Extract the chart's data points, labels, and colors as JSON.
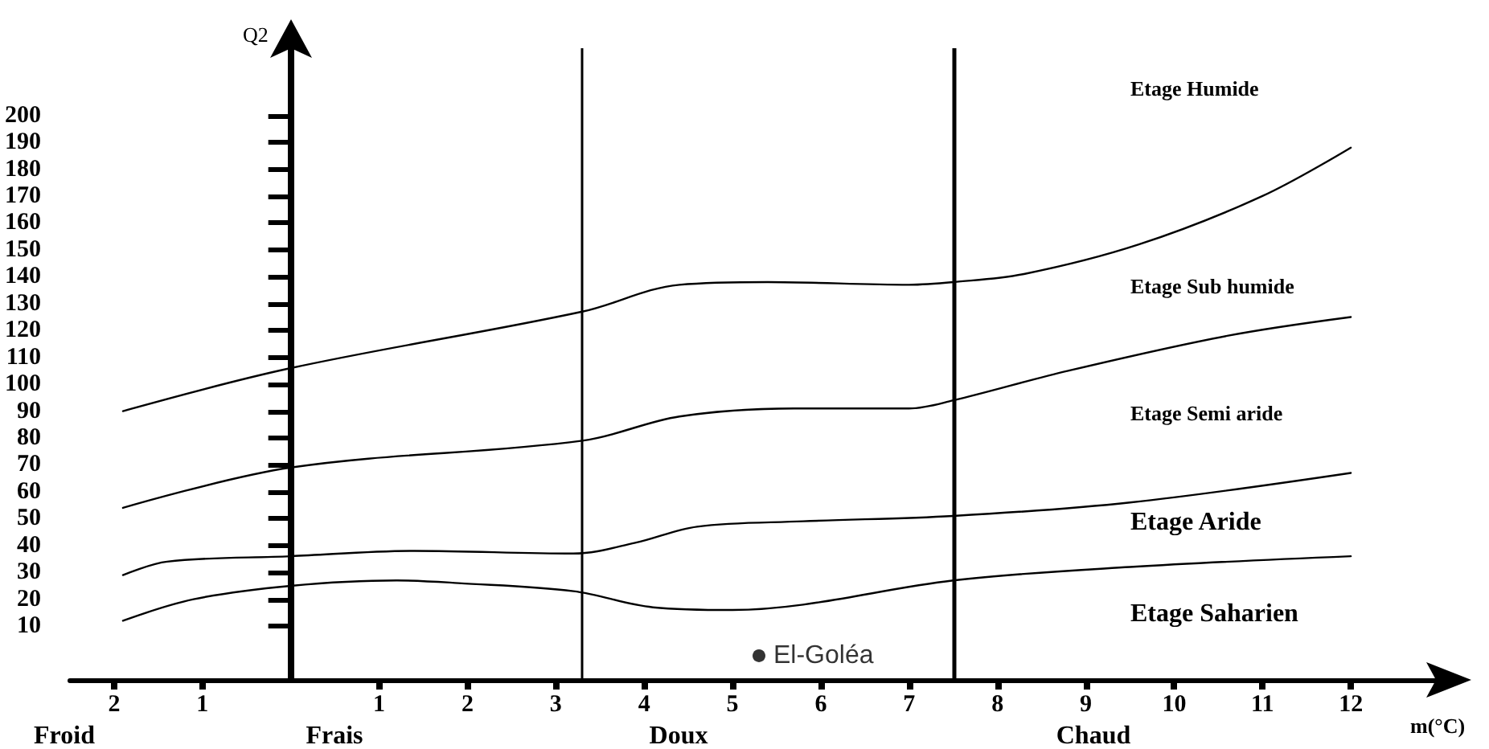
{
  "chart_data": {
    "type": "line",
    "xlabel": "m(°C)",
    "ylabel": "Q2",
    "xlim": [
      -2.5,
      13
    ],
    "ylim": [
      -10,
      225
    ],
    "xticks": [
      {
        "value": -2,
        "label": "2"
      },
      {
        "value": -1,
        "label": "1"
      },
      1,
      2,
      3,
      4,
      5,
      6,
      7,
      8,
      9,
      10,
      11,
      12
    ],
    "yticks": [
      10,
      20,
      30,
      40,
      50,
      60,
      70,
      80,
      90,
      100,
      110,
      120,
      130,
      140,
      150,
      160,
      170,
      180,
      190,
      200
    ],
    "grid": false,
    "legend": false,
    "marker": "none",
    "line_style": "solid",
    "series": [
      {
        "color": "#000000",
        "x": [
          -1.9,
          0,
          3.3,
          4.4,
          5.4,
          7,
          7.5,
          8.3,
          9.6,
          11,
          12
        ],
        "values": [
          90,
          106,
          127,
          137,
          138,
          137,
          138,
          141,
          152,
          170,
          188
        ]
      },
      {
        "color": "#000000",
        "x": [
          -1.9,
          0,
          3.3,
          4.4,
          5.7,
          7,
          7.5,
          8.8,
          10.6,
          12
        ],
        "values": [
          54,
          69,
          79,
          88,
          91,
          91,
          94,
          105,
          118,
          125
        ]
      },
      {
        "color": "#000000",
        "x": [
          -1.9,
          -1.4,
          0,
          1.4,
          3.2,
          3.9,
          4.6,
          5.8,
          7.5,
          9.5,
          12
        ],
        "values": [
          29,
          34,
          36,
          38,
          37,
          41,
          47,
          49,
          51,
          56,
          67
        ]
      },
      {
        "color": "#000000",
        "x": [
          -1.9,
          -1.1,
          0,
          1.2,
          1.9,
          3.2,
          4.1,
          5,
          5.8,
          7.5,
          9.5,
          12
        ],
        "values": [
          12,
          20,
          25,
          27,
          26,
          23,
          17,
          16,
          18,
          27,
          32,
          36
        ]
      },
      {
        "type": "scatter",
        "name": "El-Goléa",
        "marker": "circle",
        "color": "#000000",
        "x": [
          5.3
        ],
        "values": [
          -1
        ]
      }
    ],
    "ref_lines": [
      {
        "axis": "x",
        "value": 3.3,
        "color": "#000000"
      },
      {
        "axis": "x",
        "value": 7.5,
        "color": "#000000"
      }
    ],
    "annotations": [
      "Etage Humide",
      "Etage Sub humide",
      "Etage Semi aride",
      "Etage Aride",
      "Etage Saharien",
      "Froid",
      "Frais",
      "Doux",
      "Chaud"
    ]
  }
}
